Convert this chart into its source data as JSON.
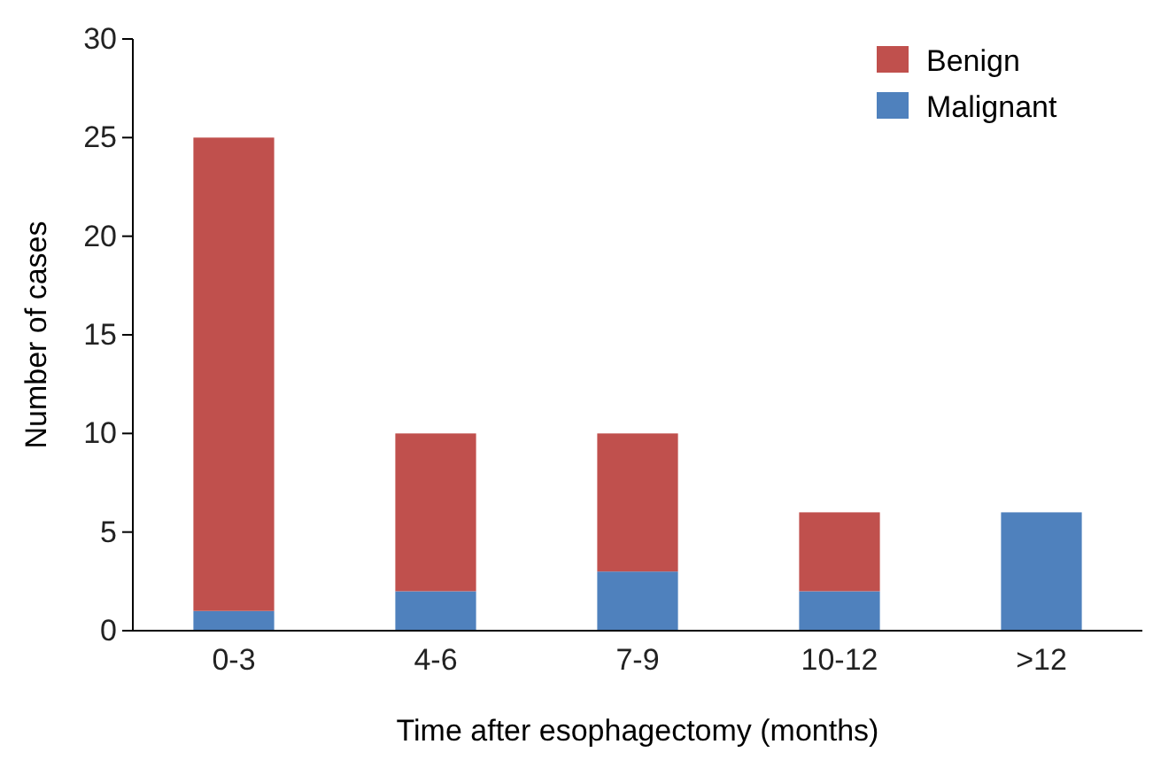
{
  "chart_data": {
    "type": "bar",
    "stacked": true,
    "xlabel": "Time after esophagectomy (months)",
    "ylabel": "Number of cases",
    "categories": [
      "0-3",
      "4-6",
      "7-9",
      "10-12",
      ">12"
    ],
    "series": [
      {
        "name": "Malignant",
        "color": "#4f81bd",
        "values": [
          1,
          2,
          3,
          2,
          6
        ]
      },
      {
        "name": "Benign",
        "color": "#c0504d",
        "values": [
          24,
          8,
          7,
          4,
          0
        ]
      }
    ],
    "ylim": [
      0,
      30
    ],
    "yticks": [
      0,
      5,
      10,
      15,
      20,
      25,
      30
    ],
    "legend": "top right"
  }
}
